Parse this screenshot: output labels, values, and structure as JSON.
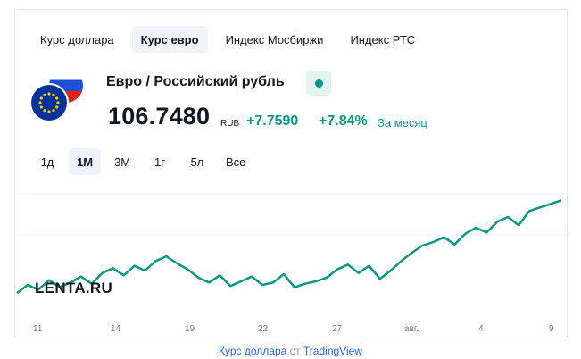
{
  "tabs": [
    {
      "label": "Курс доллара",
      "active": false
    },
    {
      "label": "Курс евро",
      "active": true
    },
    {
      "label": "Индекс Мосбиржи",
      "active": false
    },
    {
      "label": "Индекс РТС",
      "active": false
    }
  ],
  "symbol": {
    "pair": "Евро / Российский рубль",
    "price": "106.7480",
    "currency": "RUB",
    "change": "+7.7590",
    "change_pct": "+7.84%",
    "period_note": "За месяц",
    "status_color": "#089981",
    "flags": [
      "eu-flag-icon",
      "ru-flag-icon"
    ]
  },
  "ranges": [
    {
      "label": "1д",
      "active": false
    },
    {
      "label": "1М",
      "active": true
    },
    {
      "label": "3М",
      "active": false
    },
    {
      "label": "1г",
      "active": false
    },
    {
      "label": "5л",
      "active": false
    },
    {
      "label": "Все",
      "active": false
    }
  ],
  "watermark": "LENTA.RU",
  "attribution": {
    "link_text": "Курс доллара",
    "middle": " от ",
    "provider": "TradingView"
  },
  "colors": {
    "line": "#089981",
    "positive": "#089981",
    "link": "#2962ff"
  },
  "chart_data": {
    "type": "line",
    "x_ticks": [
      "11",
      "14",
      "19",
      "22",
      "27",
      "авг.",
      "4",
      "9"
    ],
    "series": [
      {
        "values": [
          98.9,
          99.6,
          99.2,
          100.0,
          99.4,
          99.8,
          100.3,
          99.7,
          100.6,
          101.0,
          100.4,
          101.2,
          100.8,
          101.6,
          102.0,
          101.4,
          100.9,
          100.2,
          99.8,
          100.4,
          99.5,
          99.9,
          100.3,
          99.6,
          99.8,
          100.5,
          99.4,
          99.7,
          99.9,
          100.2,
          100.9,
          101.3,
          100.6,
          101.2,
          100.1,
          100.8,
          101.6,
          102.3,
          102.9,
          103.2,
          103.6,
          103.0,
          103.9,
          104.4,
          104.0,
          104.9,
          105.3,
          104.6,
          105.8,
          106.1,
          106.4,
          106.7
        ]
      }
    ],
    "grid": true,
    "legend": "none"
  }
}
